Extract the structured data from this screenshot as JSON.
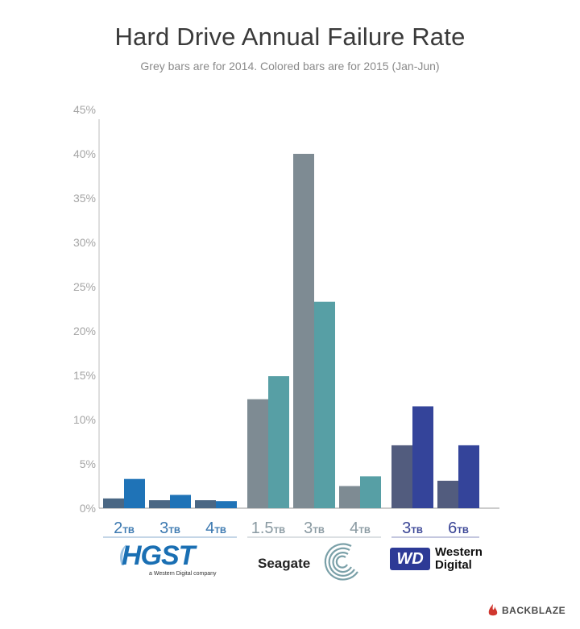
{
  "chart_data": {
    "type": "bar",
    "title": "Hard Drive Annual Failure Rate",
    "subtitle": "Grey bars are for 2014. Colored bars are for 2015 (Jan-Jun)",
    "xlabel": "",
    "ylabel": "",
    "ylim": [
      0,
      45
    ],
    "yticks": [
      "0%",
      "5%",
      "10%",
      "15%",
      "20%",
      "25%",
      "30%",
      "35%",
      "40%",
      "45%"
    ],
    "ytick_values": [
      0,
      5,
      10,
      15,
      20,
      25,
      30,
      35,
      40,
      45
    ],
    "grid": false,
    "groups": [
      {
        "brand": "HGST",
        "color_2014": "#4a6784",
        "color_2015": "#1f73b7",
        "label_color": "#3b78b0",
        "categories": [
          {
            "size": "2",
            "unit": "TB",
            "y2014": 1.1,
            "y2015": 3.3
          },
          {
            "size": "3",
            "unit": "TB",
            "y2014": 0.9,
            "y2015": 1.5
          },
          {
            "size": "4",
            "unit": "TB",
            "y2014": 0.9,
            "y2015": 0.8
          }
        ]
      },
      {
        "brand": "Seagate",
        "color_2014": "#7e8b93",
        "color_2015": "#579fa5",
        "label_color": "#8a9aa2",
        "categories": [
          {
            "size": "1.5",
            "unit": "TB",
            "y2014": 12.3,
            "y2015": 14.9
          },
          {
            "size": "3",
            "unit": "TB",
            "y2014": 40.0,
            "y2015": 23.3
          },
          {
            "size": "4",
            "unit": "TB",
            "y2014": 2.5,
            "y2015": 3.6
          }
        ]
      },
      {
        "brand": "Western Digital",
        "color_2014": "#525c7e",
        "color_2015": "#34449a",
        "label_color": "#3a4596",
        "categories": [
          {
            "size": "3",
            "unit": "TB",
            "y2014": 7.1,
            "y2015": 11.5
          },
          {
            "size": "6",
            "unit": "TB",
            "y2014": 3.1,
            "y2015": 7.1
          }
        ]
      }
    ],
    "series": [
      {
        "name": "2014",
        "values": [
          1.1,
          0.9,
          0.9,
          12.3,
          40.0,
          2.5,
          7.1,
          3.1
        ]
      },
      {
        "name": "2015 (Jan-Jun)",
        "values": [
          3.3,
          1.5,
          0.8,
          14.9,
          23.3,
          3.6,
          11.5,
          7.1
        ]
      }
    ],
    "categories": [
      "HGST 2TB",
      "HGST 3TB",
      "HGST 4TB",
      "Seagate 1.5TB",
      "Seagate 3TB",
      "Seagate 4TB",
      "WD 3TB",
      "WD 6TB"
    ]
  },
  "logos": {
    "hgst": {
      "word": "HGST",
      "sub": "a Western Digital company"
    },
    "seagate": {
      "word": "Seagate"
    },
    "wd": {
      "mark": "WD",
      "line1": "Western",
      "line2": "Digital"
    },
    "footer": {
      "brand": "BACKBLAZE",
      "color": "#d0372f"
    }
  }
}
